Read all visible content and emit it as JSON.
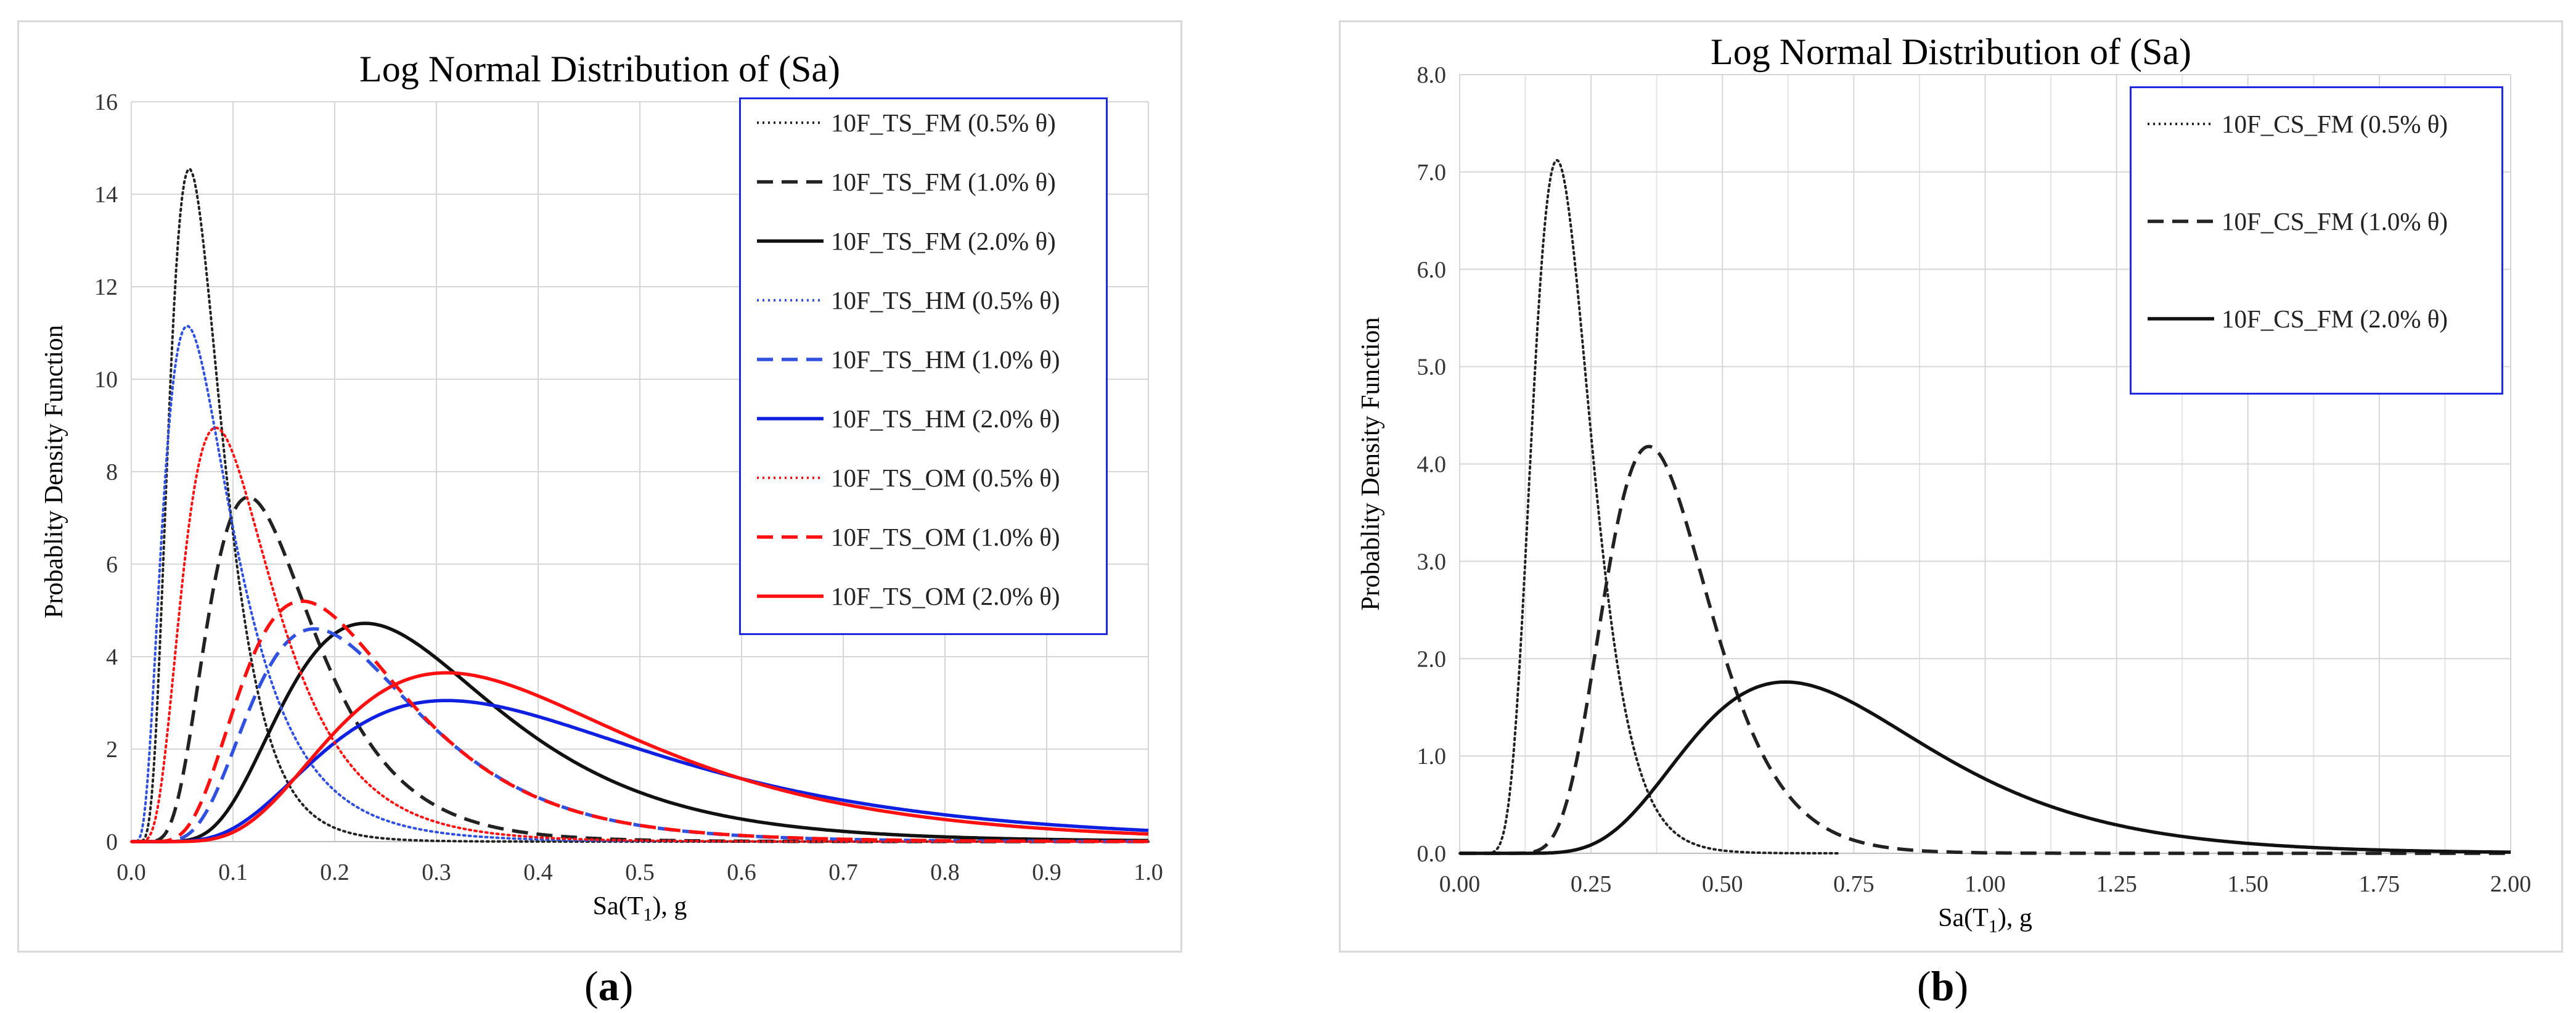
{
  "chart_data": [
    {
      "type": "line",
      "panel_label": "a",
      "title": "Log Normal Distribution of (Sa)",
      "xlabel": "Sa(T1), g",
      "ylabel": "Probablity  Density  Function",
      "xlim": [
        0,
        1.0
      ],
      "ylim": [
        0,
        16
      ],
      "xticks": [
        "0.0",
        "0.1",
        "0.2",
        "0.3",
        "0.4",
        "0.5",
        "0.6",
        "0.7",
        "0.8",
        "0.9",
        "1.0"
      ],
      "yticks": [
        "0",
        "2",
        "4",
        "6",
        "8",
        "10",
        "12",
        "14",
        "16"
      ],
      "grid": true,
      "legend_position": "top-right",
      "series": [
        {
          "name": "10F_TS_FM (0.5% θ)",
          "peak_x": 0.057,
          "peak_y": 14.55,
          "sigma": 0.45,
          "color": "#222222",
          "style": "dotted"
        },
        {
          "name": "10F_TS_FM (1.0% θ)",
          "peak_x": 0.115,
          "peak_y": 7.45,
          "sigma": 0.45,
          "color": "#222222",
          "style": "dashed"
        },
        {
          "name": "10F_TS_FM (2.0% θ)",
          "peak_x": 0.23,
          "peak_y": 4.72,
          "sigma": 0.45,
          "color": "#111111",
          "style": "solid"
        },
        {
          "name": "10F_TS_HM (0.5% θ)",
          "peak_x": 0.055,
          "peak_y": 11.15,
          "sigma": 0.6,
          "color": "#3050e0",
          "style": "dotted"
        },
        {
          "name": "10F_TS_HM (1.0% θ)",
          "peak_x": 0.18,
          "peak_y": 4.6,
          "sigma": 0.45,
          "color": "#3050e0",
          "style": "dashed"
        },
        {
          "name": "10F_TS_HM (2.0% θ)",
          "peak_x": 0.31,
          "peak_y": 3.05,
          "sigma": 0.52,
          "color": "#1020e0",
          "style": "solid"
        },
        {
          "name": "10F_TS_OM (0.5% θ)",
          "peak_x": 0.083,
          "peak_y": 8.95,
          "sigma": 0.52,
          "color": "#ff1010",
          "style": "dotted"
        },
        {
          "name": "10F_TS_OM (1.0% θ)",
          "peak_x": 0.168,
          "peak_y": 5.2,
          "sigma": 0.47,
          "color": "#ff1010",
          "style": "dashed"
        },
        {
          "name": "10F_TS_OM (2.0% θ)",
          "peak_x": 0.31,
          "peak_y": 3.65,
          "sigma": 0.47,
          "color": "#ff1010",
          "style": "solid"
        }
      ]
    },
    {
      "type": "line",
      "panel_label": "b",
      "title": "Log Normal Distribution of (Sa)",
      "xlabel": "Sa(T1), g",
      "ylabel": "Probablity  Density  Function",
      "xlim": [
        0,
        2.0
      ],
      "ylim": [
        0,
        8.0
      ],
      "xticks": [
        "0.00",
        "0.25",
        "0.50",
        "0.75",
        "1.00",
        "1.25",
        "1.50",
        "1.75",
        "2.00"
      ],
      "yticks": [
        "0.0",
        "1.0",
        "2.0",
        "3.0",
        "4.0",
        "5.0",
        "6.0",
        "7.0",
        "8.0"
      ],
      "grid": true,
      "legend_position": "top-right",
      "series": [
        {
          "name": "10F_CS_FM (0.5% θ)",
          "peak_x": 0.185,
          "peak_y": 7.12,
          "sigma": 0.3,
          "x_end": 0.72,
          "color": "#222222",
          "style": "dotted"
        },
        {
          "name": "10F_CS_FM (1.0% θ)",
          "peak_x": 0.36,
          "peak_y": 4.18,
          "sigma": 0.28,
          "x_end": 2.0,
          "color": "#222222",
          "style": "dashed"
        },
        {
          "name": "10F_CS_FM (2.0% θ)",
          "peak_x": 0.62,
          "peak_y": 1.76,
          "sigma": 0.37,
          "x_end": 2.0,
          "color": "#111111",
          "style": "solid"
        }
      ]
    }
  ],
  "captions": {
    "a": "a",
    "b": "b"
  },
  "axis_subscript": "1"
}
